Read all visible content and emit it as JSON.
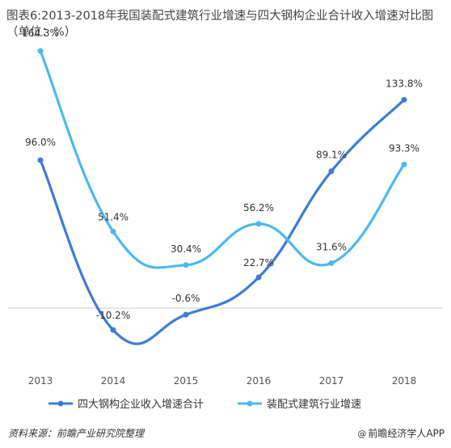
{
  "chart_data": {
    "type": "line",
    "title": "图表6:2013-2018年我国装配式建筑行业增速与四大钢构企业合计收入增速对比图（单位：%）",
    "categories": [
      "2013",
      "2014",
      "2015",
      "2016",
      "2017",
      "2018"
    ],
    "series": [
      {
        "name": "四大钢构企业收入增速合计",
        "color": "#3f7cd6",
        "values": [
          96.0,
          -10.2,
          -0.6,
          22.7,
          89.1,
          133.8
        ],
        "labels": [
          "96.0%",
          "-10.2%",
          "-0.6%",
          "22.7%",
          "89.1%",
          "133.8%"
        ]
      },
      {
        "name": "装配式建筑行业增速",
        "color": "#4db8f0",
        "values": [
          164.3,
          51.4,
          30.4,
          56.2,
          31.6,
          93.3
        ],
        "labels": [
          "164.3%",
          "51.4%",
          "30.4%",
          "56.2%",
          "31.6%",
          "93.3%"
        ]
      }
    ],
    "xlabel": "",
    "ylabel": "",
    "ylim": [
      -40,
      180
    ],
    "smooth": true,
    "legend_position": "bottom",
    "grid": false
  },
  "footer": {
    "source": "资料来源：前瞻产业研究院整理",
    "brand": "前瞻经济学人APP",
    "brand_icon": "@"
  }
}
